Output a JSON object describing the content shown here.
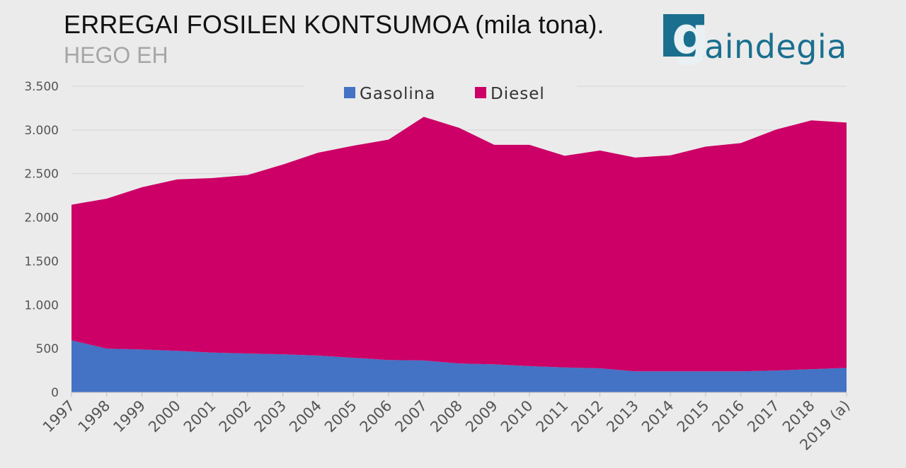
{
  "header": {
    "title": "ERREGAI FOSILEN KONTSUMOA (mila tona).",
    "subtitle": "HEGO EH"
  },
  "logo": {
    "letter": "g",
    "text": "aindegia",
    "color": "#1a6f8e"
  },
  "chart_data": {
    "type": "area",
    "stacked": true,
    "categories": [
      "1997",
      "1998",
      "1999",
      "2000",
      "2001",
      "2002",
      "2003",
      "2004",
      "2005",
      "2006",
      "2007",
      "2008",
      "2009",
      "2010",
      "2011",
      "2012",
      "2013",
      "2014",
      "2015",
      "2016",
      "2017",
      "2018",
      "2019 (a)"
    ],
    "series": [
      {
        "name": "Gasolina",
        "color": "#4472c4",
        "values": [
          595,
          500,
          490,
          475,
          455,
          445,
          435,
          420,
          395,
          370,
          365,
          330,
          320,
          300,
          285,
          275,
          240,
          240,
          240,
          240,
          250,
          265,
          280
        ]
      },
      {
        "name": "Diesel",
        "color": "#cc0066",
        "values": [
          1550,
          1715,
          1855,
          1960,
          1995,
          2040,
          2170,
          2320,
          2425,
          2520,
          2785,
          2695,
          2510,
          2530,
          2420,
          2490,
          2445,
          2470,
          2570,
          2610,
          2755,
          2845,
          2805
        ]
      }
    ],
    "ylim": [
      0,
      3500
    ],
    "yticks": [
      0,
      500,
      1000,
      1500,
      2000,
      2500,
      3000,
      3500
    ],
    "ytick_labels": [
      "0",
      "500",
      "1.000",
      "1.500",
      "2.000",
      "2.500",
      "3.000",
      "3.500"
    ],
    "grid": true,
    "legend_position": "top-center"
  }
}
